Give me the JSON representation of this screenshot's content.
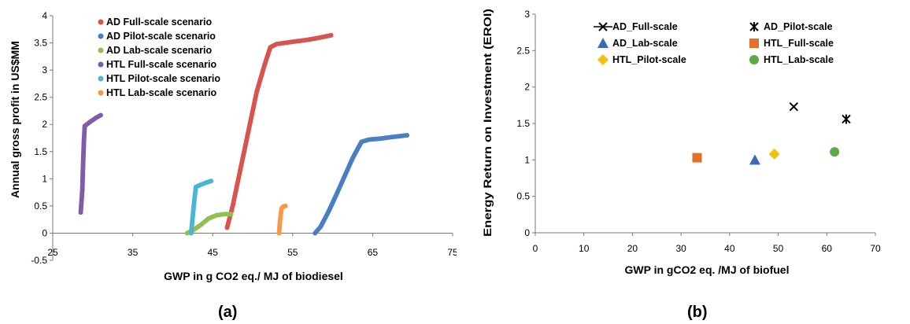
{
  "captions": {
    "a": "(a)",
    "b": "(b)"
  },
  "chart_data": [
    {
      "type": "scatter",
      "panel": "(a)",
      "xlabel": "GWP in g CO2 eq./ MJ of biodiesel",
      "ylabel": "Annual gross profit in US$MM",
      "xlim": [
        25,
        75
      ],
      "ylim": [
        -0.5,
        4
      ],
      "xticks": [
        25,
        35,
        45,
        55,
        65,
        75
      ],
      "yticks": [
        -0.5,
        0,
        0.5,
        1,
        1.5,
        2,
        2.5,
        3,
        3.5,
        4
      ],
      "grid": false,
      "legend": "top-left",
      "series": [
        {
          "name": "AD Full-scale scenario",
          "color": "#d9534f",
          "points": [
            [
              46.8,
              0.1
            ],
            [
              47.5,
              0.5
            ],
            [
              48.5,
              1.2
            ],
            [
              49.5,
              1.9
            ],
            [
              50.5,
              2.6
            ],
            [
              51.5,
              3.1
            ],
            [
              52.2,
              3.42
            ],
            [
              53,
              3.48
            ],
            [
              55,
              3.52
            ],
            [
              57,
              3.56
            ],
            [
              58.5,
              3.6
            ],
            [
              59.8,
              3.64
            ]
          ]
        },
        {
          "name": "AD Pilot-scale scenario",
          "color": "#4a7fc1",
          "points": [
            [
              57.8,
              0
            ],
            [
              58.5,
              0.12
            ],
            [
              59.5,
              0.4
            ],
            [
              60.5,
              0.72
            ],
            [
              61.5,
              1.05
            ],
            [
              62.5,
              1.38
            ],
            [
              63.6,
              1.68
            ],
            [
              64.5,
              1.72
            ],
            [
              66,
              1.74
            ],
            [
              67.5,
              1.77
            ],
            [
              69.3,
              1.8
            ]
          ]
        },
        {
          "name": "AD Lab-scale scenario",
          "color": "#92c050",
          "points": [
            [
              41.8,
              0
            ],
            [
              42.5,
              0.05
            ],
            [
              43.5,
              0.15
            ],
            [
              44.5,
              0.27
            ],
            [
              45.5,
              0.33
            ],
            [
              46.5,
              0.35
            ],
            [
              47.3,
              0.35
            ]
          ]
        },
        {
          "name": "HTL Full-scale scenario",
          "color": "#7f5ba8",
          "points": [
            [
              28.5,
              0.38
            ],
            [
              28.7,
              0.8
            ],
            [
              28.8,
              1.3
            ],
            [
              28.9,
              1.7
            ],
            [
              29,
              1.97
            ],
            [
              29.7,
              2.05
            ],
            [
              30.4,
              2.12
            ],
            [
              31,
              2.17
            ]
          ]
        },
        {
          "name": "HTL Pilot-scale scenario",
          "color": "#4bb5d4",
          "points": [
            [
              42.3,
              0
            ],
            [
              42.5,
              0.3
            ],
            [
              42.7,
              0.6
            ],
            [
              42.9,
              0.85
            ],
            [
              43.5,
              0.89
            ],
            [
              44.2,
              0.93
            ],
            [
              44.8,
              0.96
            ]
          ]
        },
        {
          "name": "HTL Lab-scale scenario",
          "color": "#f79a48",
          "points": [
            [
              53.3,
              0
            ],
            [
              53.4,
              0.2
            ],
            [
              53.6,
              0.45
            ],
            [
              53.8,
              0.49
            ],
            [
              54.1,
              0.5
            ]
          ]
        }
      ]
    },
    {
      "type": "scatter",
      "panel": "(b)",
      "xlabel": "GWP in gCO2 eq. /MJ of biofuel",
      "ylabel": "Energy Return on Investment (EROI)",
      "xlim": [
        0,
        70
      ],
      "ylim": [
        0,
        3
      ],
      "xticks": [
        0,
        10,
        20,
        30,
        40,
        50,
        60,
        70
      ],
      "yticks": [
        0,
        0.5,
        1,
        1.5,
        2,
        2.5,
        3
      ],
      "grid": false,
      "legend": "top",
      "series": [
        {
          "name": "AD_Full-scale",
          "marker": "x",
          "color": "#000000",
          "points": [
            [
              53.2,
              1.73
            ]
          ]
        },
        {
          "name": "AD_Pilot-scale",
          "marker": "asterisk",
          "color": "#000000",
          "points": [
            [
              64,
              1.56
            ]
          ]
        },
        {
          "name": "AD_Lab-scale",
          "marker": "triangle",
          "color": "#3d6ab8",
          "points": [
            [
              45.2,
              1.0
            ]
          ]
        },
        {
          "name": "HTL_Full-scale",
          "marker": "square",
          "color": "#e2712b",
          "points": [
            [
              33.3,
              1.03
            ]
          ]
        },
        {
          "name": "HTL_Pilot-scale",
          "marker": "diamond",
          "color": "#f2c010",
          "points": [
            [
              49.2,
              1.08
            ]
          ]
        },
        {
          "name": "HTL_Lab-scale",
          "marker": "circle",
          "color": "#60a844",
          "points": [
            [
              61.6,
              1.11
            ]
          ]
        }
      ]
    }
  ]
}
